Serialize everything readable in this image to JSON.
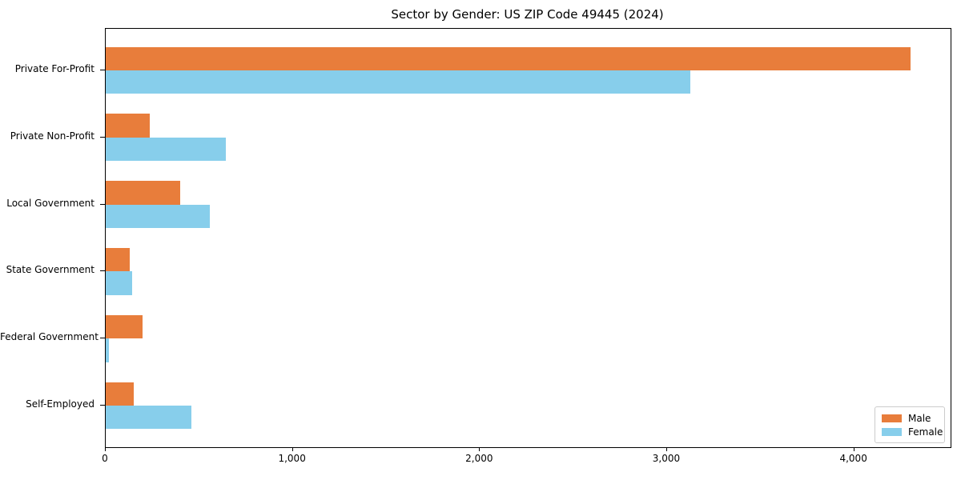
{
  "chart_data": {
    "type": "bar",
    "orientation": "horizontal",
    "title": "Sector by Gender: US ZIP Code 49445 (2024)",
    "xlabel": "",
    "ylabel": "",
    "categories": [
      "Private For-Profit",
      "Private Non-Profit",
      "Local Government",
      "State Government",
      "Federal Government",
      "Self-Employed"
    ],
    "series": [
      {
        "name": "Male",
        "color": "#e87d3b",
        "values": [
          4300,
          235,
          400,
          130,
          195,
          150
        ]
      },
      {
        "name": "Female",
        "color": "#87ceeb",
        "values": [
          3125,
          640,
          555,
          140,
          15,
          458
        ]
      }
    ],
    "xlim": [
      0,
      4515
    ],
    "xticks": [
      0,
      1000,
      2000,
      3000,
      4000
    ],
    "xtick_labels": [
      "0",
      "1,000",
      "2,000",
      "3,000",
      "4,000"
    ],
    "grid": false,
    "legend": {
      "position": "lower right",
      "entries": [
        "Male",
        "Female"
      ]
    },
    "colors": {
      "male": "#e87d3b",
      "female": "#87ceeb",
      "spine": "#000000",
      "background": "#ffffff",
      "legend_border": "#cccccc"
    }
  }
}
